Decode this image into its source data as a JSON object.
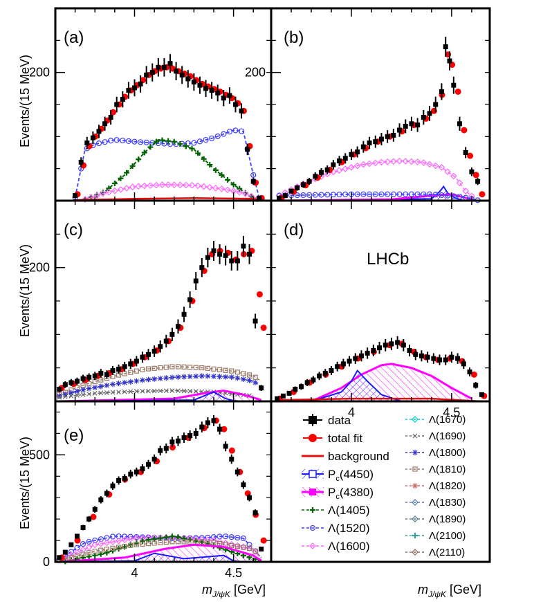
{
  "figure": {
    "ylabel": "Events/(15 MeV)",
    "xlabel_main": "m",
    "xlabel_sub": "J/ψK",
    "xlabel_unit": " [GeV]",
    "lhcb_label": "LHCb",
    "colors": {
      "data": "#000000",
      "fit": "#ff0000",
      "bkg": "#e01010",
      "pc4450": "#1a1aff",
      "pc4380": "#ff00ff",
      "l1405": "#006400",
      "l1520": "#4040ff",
      "l1600": "#ff66ff",
      "l1670": "#00cccc",
      "l1690": "#666666",
      "l1800": "#3333cc",
      "l1810": "#997766",
      "l1820": "#cc6666",
      "l1830": "#5577aa",
      "l1890": "#557788",
      "l2100": "#339999",
      "l2110": "#886655"
    }
  },
  "legend": {
    "col1": [
      "data",
      "total fit",
      "background",
      "P_c(4450)",
      "P_c(4380)",
      "Λ(1405)",
      "Λ(1520)",
      "Λ(1600)"
    ],
    "col2": [
      "Λ(1670)",
      "Λ(1690)",
      "Λ(1800)",
      "Λ(1810)",
      "Λ(1820)",
      "Λ(1830)",
      "Λ(1890)",
      "Λ(2100)",
      "Λ(2110)"
    ],
    "pc4450_main": "P",
    "pc4450_sub": "c",
    "pc4450_rest": "(4450)",
    "pc4380_main": "P",
    "pc4380_sub": "c",
    "pc4380_rest": "(4380)"
  },
  "chart_data": [
    {
      "panel": "(a)",
      "type": "scatter",
      "xlim": [
        3.6,
        4.69
      ],
      "ylim": [
        0,
        300
      ],
      "yticks": [
        200
      ],
      "xticks": [
        4.0,
        4.5
      ],
      "data": {
        "x": [
          3.7,
          3.73,
          3.76,
          3.79,
          3.82,
          3.85,
          3.88,
          3.91,
          3.94,
          3.97,
          4.0,
          4.03,
          4.06,
          4.09,
          4.12,
          4.15,
          4.18,
          4.21,
          4.24,
          4.27,
          4.3,
          4.33,
          4.36,
          4.39,
          4.42,
          4.45,
          4.48,
          4.51,
          4.54,
          4.57,
          4.6,
          4.63
        ],
        "y": [
          8,
          60,
          90,
          98,
          108,
          120,
          130,
          150,
          158,
          172,
          176,
          182,
          196,
          200,
          208,
          208,
          214,
          202,
          196,
          190,
          185,
          180,
          175,
          172,
          168,
          160,
          164,
          150,
          140,
          80,
          30,
          4
        ]
      },
      "fit": {
        "x": [
          3.7,
          3.73,
          3.76,
          3.79,
          3.82,
          3.85,
          3.88,
          3.91,
          3.94,
          3.97,
          4.0,
          4.03,
          4.06,
          4.09,
          4.12,
          4.15,
          4.18,
          4.21,
          4.24,
          4.27,
          4.3,
          4.33,
          4.36,
          4.39,
          4.42,
          4.45,
          4.48,
          4.51,
          4.54,
          4.57,
          4.6,
          4.63
        ],
        "y": [
          10,
          55,
          85,
          100,
          112,
          125,
          138,
          150,
          162,
          172,
          180,
          188,
          196,
          202,
          206,
          208,
          206,
          202,
          198,
          194,
          188,
          182,
          178,
          174,
          170,
          165,
          160,
          152,
          140,
          85,
          28,
          4
        ]
      },
      "components": [
        {
          "name": "Λ(1520)",
          "x": [
            3.7,
            3.75,
            3.8,
            3.9,
            4.0,
            4.1,
            4.2,
            4.3,
            4.4,
            4.5,
            4.55,
            4.6,
            4.63
          ],
          "y": [
            5,
            80,
            88,
            95,
            92,
            90,
            88,
            90,
            98,
            110,
            108,
            40,
            4
          ]
        },
        {
          "name": "Λ(1405)",
          "x": [
            3.75,
            3.85,
            3.95,
            4.05,
            4.12,
            4.2,
            4.3,
            4.4,
            4.5,
            4.58,
            4.63
          ],
          "y": [
            2,
            14,
            40,
            75,
            95,
            92,
            80,
            50,
            25,
            8,
            1
          ]
        },
        {
          "name": "Λ(1600)",
          "x": [
            3.75,
            3.85,
            4.0,
            4.15,
            4.3,
            4.45,
            4.55,
            4.63
          ],
          "y": [
            2,
            12,
            22,
            25,
            24,
            18,
            12,
            2
          ]
        },
        {
          "name": "background",
          "x": [
            3.7,
            4.0,
            4.3,
            4.6,
            4.65
          ],
          "y": [
            1,
            3,
            4,
            3,
            0
          ]
        }
      ]
    },
    {
      "panel": "(b)",
      "type": "scatter",
      "xlim": [
        3.6,
        4.69
      ],
      "ylim": [
        0,
        300
      ],
      "yticks": [
        200
      ],
      "xticks": [
        4.0,
        4.5
      ],
      "data": {
        "x": [
          3.64,
          3.67,
          3.7,
          3.73,
          3.76,
          3.79,
          3.82,
          3.85,
          3.88,
          3.91,
          3.94,
          3.97,
          4.0,
          4.03,
          4.06,
          4.09,
          4.12,
          4.15,
          4.18,
          4.21,
          4.24,
          4.27,
          4.3,
          4.33,
          4.36,
          4.39,
          4.42,
          4.45,
          4.47,
          4.49,
          4.51,
          4.54,
          4.57,
          4.6,
          4.63
        ],
        "y": [
          4,
          8,
          15,
          20,
          25,
          30,
          38,
          44,
          48,
          56,
          62,
          66,
          72,
          76,
          84,
          90,
          92,
          96,
          100,
          102,
          110,
          116,
          120,
          118,
          130,
          136,
          150,
          170,
          240,
          218,
          180,
          120,
          75,
          45,
          30
        ]
      },
      "fit": {
        "x": [
          3.64,
          3.7,
          3.76,
          3.82,
          3.88,
          3.94,
          4.0,
          4.06,
          4.12,
          4.18,
          4.24,
          4.3,
          4.36,
          4.4,
          4.44,
          4.47,
          4.49,
          4.52,
          4.55,
          4.58,
          4.61,
          4.64
        ],
        "y": [
          4,
          14,
          24,
          36,
          48,
          60,
          72,
          82,
          92,
          100,
          108,
          118,
          128,
          140,
          165,
          228,
          212,
          170,
          110,
          70,
          40,
          10
        ]
      },
      "components": [
        {
          "name": "Λ(1600)",
          "x": [
            3.64,
            3.75,
            3.9,
            4.05,
            4.15,
            4.25,
            4.35,
            4.45,
            4.52,
            4.57,
            4.62
          ],
          "y": [
            8,
            25,
            44,
            56,
            60,
            62,
            60,
            52,
            36,
            15,
            2
          ]
        },
        {
          "name": "P_c(4450)",
          "x": [
            3.64,
            4.4,
            4.44,
            4.46,
            4.48,
            4.52,
            4.56
          ],
          "y": [
            0,
            3,
            14,
            22,
            12,
            4,
            0
          ]
        },
        {
          "name": "P_c(4380)",
          "x": [
            3.64,
            4.2,
            4.4,
            4.5,
            4.6
          ],
          "y": [
            0,
            2,
            8,
            10,
            2
          ]
        },
        {
          "name": "Λ(1520)",
          "x": [
            3.64,
            4.0,
            4.4,
            4.55,
            4.64
          ],
          "y": [
            8,
            10,
            10,
            6,
            0
          ]
        }
      ]
    },
    {
      "panel": "(c)",
      "type": "scatter",
      "xlim": [
        3.6,
        4.69
      ],
      "ylim": [
        0,
        300
      ],
      "yticks": [
        200
      ],
      "xticks": [
        4.0,
        4.5
      ],
      "data": {
        "x": [
          3.62,
          3.65,
          3.68,
          3.71,
          3.74,
          3.77,
          3.8,
          3.83,
          3.86,
          3.89,
          3.92,
          3.95,
          3.98,
          4.01,
          4.04,
          4.07,
          4.1,
          4.13,
          4.16,
          4.19,
          4.22,
          4.25,
          4.28,
          4.31,
          4.34,
          4.37,
          4.4,
          4.43,
          4.46,
          4.49,
          4.52,
          4.55,
          4.58,
          4.61,
          4.64
        ],
        "y": [
          18,
          25,
          28,
          30,
          34,
          36,
          38,
          42,
          40,
          46,
          48,
          52,
          56,
          60,
          66,
          70,
          75,
          82,
          90,
          100,
          112,
          130,
          152,
          180,
          200,
          215,
          225,
          220,
          218,
          210,
          210,
          232,
          220,
          120,
          20
        ]
      },
      "fit": {
        "x": [
          3.62,
          3.68,
          3.74,
          3.8,
          3.86,
          3.92,
          3.98,
          4.04,
          4.1,
          4.16,
          4.22,
          4.28,
          4.34,
          4.38,
          4.42,
          4.46,
          4.5,
          4.54,
          4.58,
          4.62,
          4.64
        ],
        "y": [
          20,
          26,
          32,
          38,
          42,
          48,
          56,
          66,
          76,
          90,
          110,
          150,
          195,
          220,
          225,
          222,
          212,
          220,
          225,
          160,
          110
        ]
      },
      "components": [
        {
          "name": "Λ(1810)",
          "x": [
            3.62,
            3.75,
            3.9,
            4.05,
            4.2,
            4.35,
            4.5,
            4.6,
            4.64
          ],
          "y": [
            10,
            25,
            38,
            48,
            52,
            50,
            45,
            38,
            30
          ]
        },
        {
          "name": "Λ(1800)",
          "x": [
            3.62,
            3.75,
            3.9,
            4.05,
            4.2,
            4.35,
            4.5,
            4.6,
            4.64
          ],
          "y": [
            8,
            18,
            26,
            32,
            36,
            38,
            36,
            30,
            22
          ]
        },
        {
          "name": "Λ(1690)",
          "x": [
            3.62,
            3.8,
            4.0,
            4.2,
            4.4,
            4.6
          ],
          "y": [
            6,
            12,
            15,
            16,
            14,
            8
          ]
        },
        {
          "name": "P_c(4380)",
          "x": [
            3.62,
            4.2,
            4.35,
            4.45,
            4.55,
            4.64
          ],
          "y": [
            0,
            4,
            12,
            16,
            10,
            2
          ]
        },
        {
          "name": "P_c(4450)",
          "x": [
            3.62,
            4.3,
            4.4,
            4.46,
            4.5,
            4.55
          ],
          "y": [
            0,
            2,
            14,
            4,
            1,
            0
          ]
        }
      ]
    },
    {
      "panel": "(d)",
      "type": "scatter",
      "xlim": [
        3.6,
        4.69
      ],
      "ylim": [
        0,
        300
      ],
      "yticks": [],
      "xticks": [
        4.0,
        4.5
      ],
      "data": {
        "x": [
          3.63,
          3.66,
          3.69,
          3.72,
          3.75,
          3.78,
          3.81,
          3.84,
          3.87,
          3.9,
          3.93,
          3.96,
          3.99,
          4.02,
          4.05,
          4.08,
          4.11,
          4.14,
          4.17,
          4.2,
          4.23,
          4.26,
          4.29,
          4.32,
          4.35,
          4.38,
          4.41,
          4.44,
          4.47,
          4.5,
          4.53,
          4.56,
          4.59,
          4.62,
          4.65
        ],
        "y": [
          4,
          8,
          12,
          18,
          22,
          28,
          32,
          38,
          42,
          46,
          52,
          56,
          60,
          64,
          68,
          72,
          76,
          80,
          84,
          86,
          88,
          84,
          76,
          70,
          68,
          66,
          64,
          62,
          62,
          66,
          64,
          56,
          44,
          24,
          10
        ]
      },
      "fit": {
        "x": [
          3.63,
          3.7,
          3.78,
          3.86,
          3.94,
          4.02,
          4.1,
          4.18,
          4.24,
          4.3,
          4.36,
          4.42,
          4.48,
          4.54,
          4.6,
          4.65
        ],
        "y": [
          4,
          14,
          28,
          40,
          52,
          64,
          74,
          84,
          86,
          74,
          66,
          62,
          64,
          60,
          40,
          8
        ]
      },
      "components": [
        {
          "name": "P_c(4380)",
          "x": [
            3.8,
            3.95,
            4.05,
            4.15,
            4.2,
            4.3,
            4.4,
            4.5,
            4.6
          ],
          "y": [
            0,
            20,
            40,
            54,
            56,
            50,
            38,
            20,
            4
          ]
        },
        {
          "name": "P_c(4450)",
          "x": [
            3.8,
            3.95,
            4.0,
            4.03,
            4.08,
            4.15,
            4.25
          ],
          "y": [
            0,
            14,
            30,
            46,
            30,
            10,
            0
          ]
        },
        {
          "name": "background",
          "x": [
            3.63,
            4.0,
            4.4,
            4.65
          ],
          "y": [
            2,
            4,
            4,
            0
          ]
        }
      ]
    },
    {
      "panel": "(e)",
      "type": "scatter",
      "xlim": [
        3.6,
        4.69
      ],
      "ylim": [
        0,
        750
      ],
      "yticks": [
        0,
        500
      ],
      "xticks": [
        4.0,
        4.5
      ],
      "data": {
        "x": [
          3.62,
          3.65,
          3.68,
          3.71,
          3.74,
          3.77,
          3.8,
          3.83,
          3.86,
          3.89,
          3.92,
          3.95,
          3.98,
          4.01,
          4.04,
          4.07,
          4.1,
          4.13,
          4.16,
          4.19,
          4.22,
          4.25,
          4.28,
          4.31,
          4.34,
          4.37,
          4.4,
          4.43,
          4.46,
          4.49,
          4.52,
          4.55,
          4.58,
          4.61,
          4.64
        ],
        "y": [
          20,
          45,
          80,
          120,
          160,
          200,
          245,
          290,
          320,
          355,
          380,
          390,
          410,
          420,
          435,
          455,
          480,
          520,
          530,
          560,
          565,
          580,
          590,
          600,
          630,
          650,
          660,
          620,
          540,
          480,
          420,
          360,
          300,
          230,
          60
        ]
      },
      "fit": {
        "x": [
          3.62,
          3.7,
          3.78,
          3.86,
          3.94,
          4.02,
          4.1,
          4.18,
          4.26,
          4.34,
          4.4,
          4.44,
          4.48,
          4.52,
          4.56,
          4.6,
          4.64
        ],
        "y": [
          20,
          100,
          210,
          315,
          385,
          420,
          470,
          535,
          580,
          625,
          660,
          620,
          520,
          420,
          320,
          220,
          100
        ]
      },
      "components": [
        {
          "name": "Λ(1520)",
          "x": [
            3.62,
            3.75,
            3.9,
            4.05,
            4.2,
            4.35,
            4.45,
            4.55,
            4.64
          ],
          "y": [
            10,
            90,
            120,
            115,
            110,
            112,
            120,
            110,
            20
          ]
        },
        {
          "name": "Λ(1600)",
          "x": [
            3.62,
            3.8,
            4.0,
            4.2,
            4.4,
            4.6,
            4.64
          ],
          "y": [
            8,
            80,
            110,
            115,
            100,
            60,
            10
          ]
        },
        {
          "name": "Λ(1405)",
          "x": [
            3.65,
            3.85,
            4.05,
            4.2,
            4.35,
            4.55,
            4.64
          ],
          "y": [
            2,
            40,
            100,
            120,
            90,
            30,
            4
          ]
        },
        {
          "name": "Λ(1810)",
          "x": [
            3.62,
            3.8,
            4.0,
            4.2,
            4.4,
            4.6,
            4.64
          ],
          "y": [
            6,
            50,
            80,
            95,
            90,
            60,
            20
          ]
        },
        {
          "name": "P_c(4380)",
          "x": [
            3.62,
            3.95,
            4.15,
            4.3,
            4.45,
            4.6,
            4.64
          ],
          "y": [
            0,
            20,
            60,
            80,
            70,
            30,
            5
          ]
        },
        {
          "name": "P_c(4450)",
          "x": [
            3.62,
            4.0,
            4.1,
            4.25,
            4.45,
            4.5,
            4.55
          ],
          "y": [
            0,
            5,
            40,
            15,
            30,
            5,
            0
          ]
        }
      ]
    }
  ]
}
